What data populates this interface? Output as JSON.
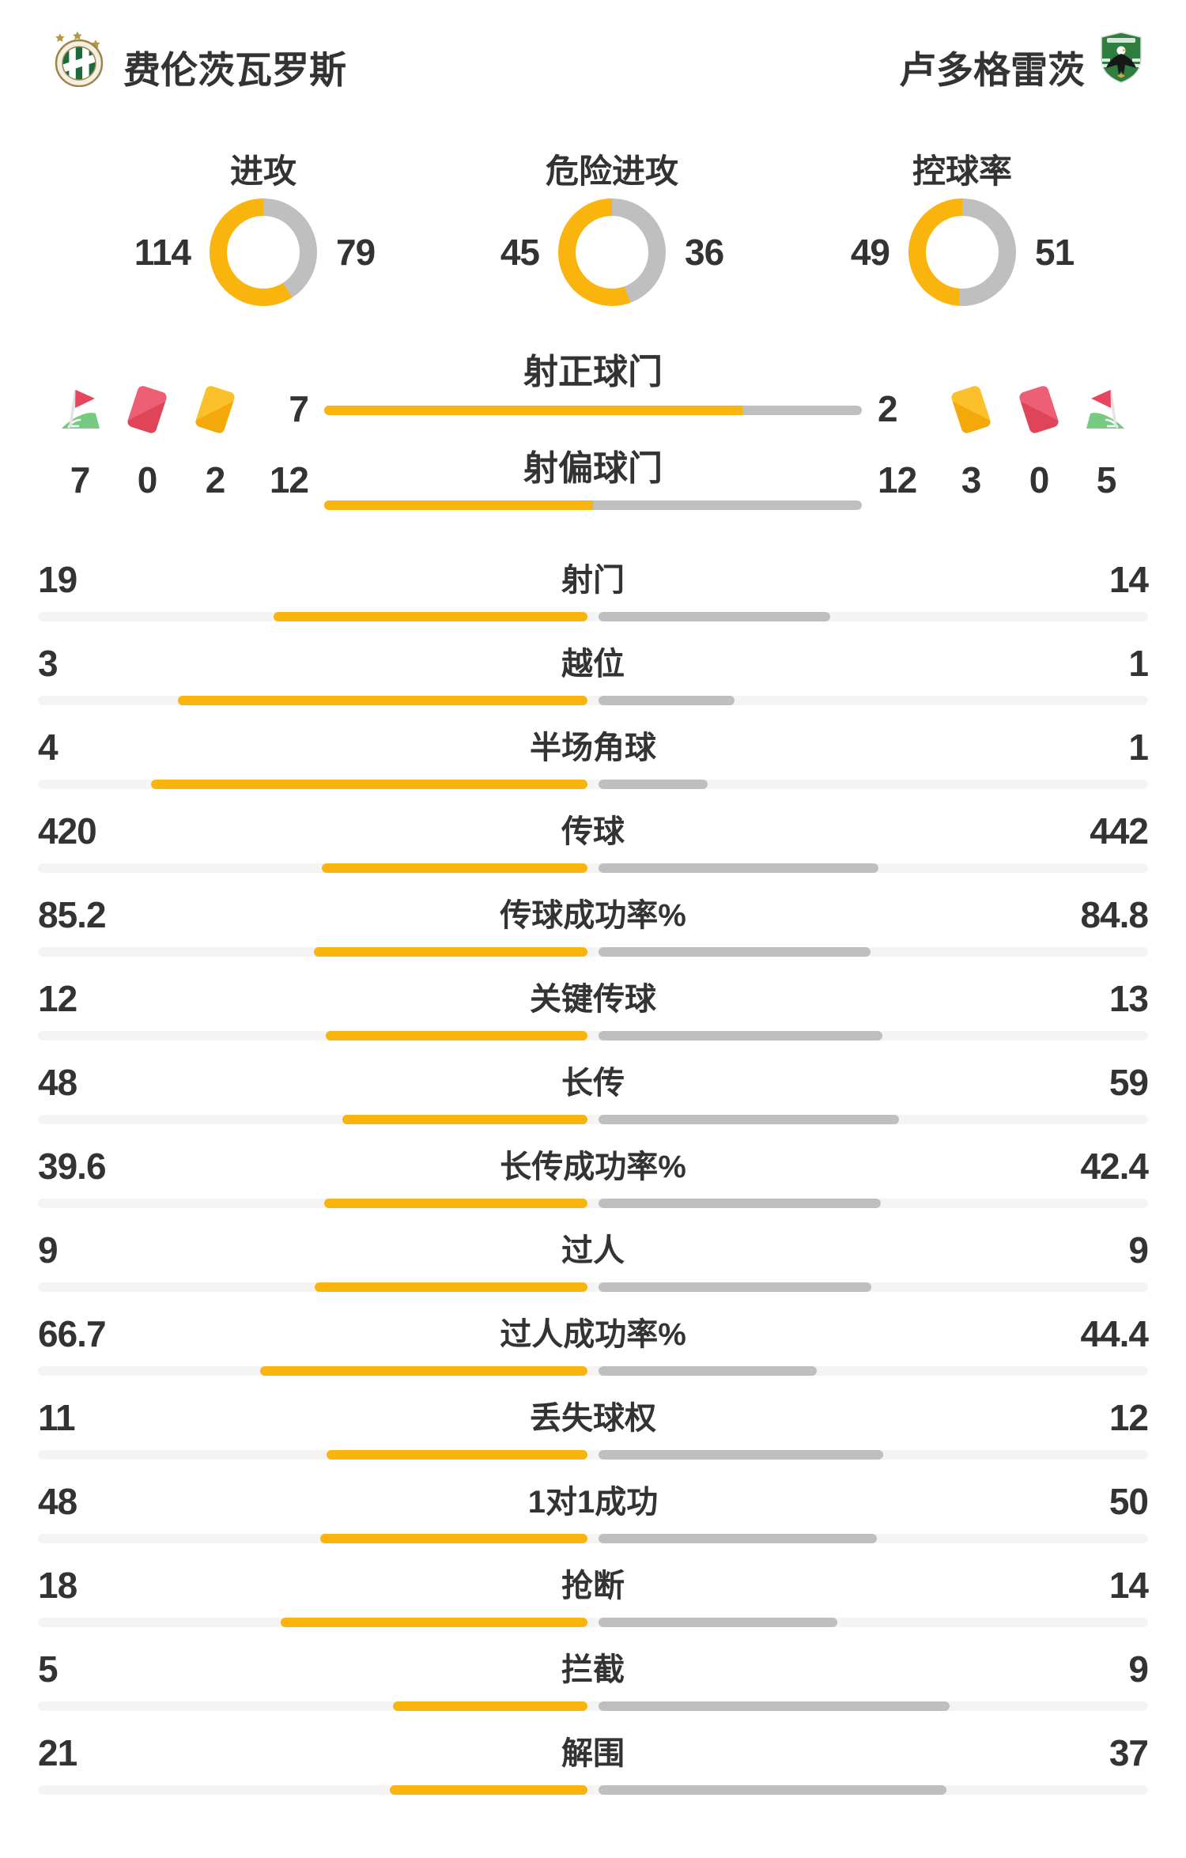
{
  "teams": {
    "home": {
      "name": "费伦茨瓦罗斯",
      "logo": "ferencvaros-badge"
    },
    "away": {
      "name": "卢多格雷茨",
      "logo": "ludogorets-badge"
    }
  },
  "donuts": [
    {
      "label": "进攻",
      "home": 114,
      "away": 79
    },
    {
      "label": "危险进攻",
      "home": 45,
      "away": 36
    },
    {
      "label": "控球率",
      "home": 49,
      "away": 51
    }
  ],
  "shot_bars": [
    {
      "label": "射正球门",
      "home": 7,
      "away": 2
    },
    {
      "label": "射偏球门",
      "home": 12,
      "away": 12
    }
  ],
  "discipline": {
    "home": [
      {
        "icon": "corner-flag-icon",
        "count": 7
      },
      {
        "icon": "red-card-icon",
        "count": 0
      },
      {
        "icon": "yellow-card-icon",
        "count": 2
      }
    ],
    "away": [
      {
        "icon": "yellow-card-icon",
        "count": 3
      },
      {
        "icon": "red-card-icon",
        "count": 0
      },
      {
        "icon": "corner-flag-icon",
        "count": 5
      }
    ]
  },
  "stats": [
    {
      "label": "射门",
      "home": 19,
      "away": 14
    },
    {
      "label": "越位",
      "home": 3,
      "away": 1
    },
    {
      "label": "半场角球",
      "home": 4,
      "away": 1
    },
    {
      "label": "传球",
      "home": 420,
      "away": 442
    },
    {
      "label": "传球成功率%",
      "home": 85.2,
      "away": 84.8
    },
    {
      "label": "关键传球",
      "home": 12,
      "away": 13
    },
    {
      "label": "长传",
      "home": 48,
      "away": 59
    },
    {
      "label": "长传成功率%",
      "home": 39.6,
      "away": 42.4
    },
    {
      "label": "过人",
      "home": 9,
      "away": 9
    },
    {
      "label": "过人成功率%",
      "home": 66.7,
      "away": 44.4
    },
    {
      "label": "丢失球权",
      "home": 11,
      "away": 12
    },
    {
      "label": "1对1成功",
      "home": 48,
      "away": 50
    },
    {
      "label": "抢断",
      "home": 18,
      "away": 14
    },
    {
      "label": "拦截",
      "home": 5,
      "away": 9
    },
    {
      "label": "解围",
      "home": 21,
      "away": 37
    }
  ],
  "colors": {
    "home_accent": "#F9B40E",
    "away_accent": "#BFBFBF",
    "track": "#F4F4F5",
    "text": "#333333",
    "red_card": "#E04458",
    "yellow_card": "#F4A90A",
    "flag_green": "#77CB80",
    "flag_red": "#E8465F"
  },
  "chart_data": [
    {
      "type": "pie",
      "title": "进攻",
      "categories": [
        "费伦茨瓦罗斯",
        "卢多格雷茨"
      ],
      "values": [
        114,
        79
      ],
      "colors": [
        "#F9B40E",
        "#BFBFBF"
      ]
    },
    {
      "type": "pie",
      "title": "危险进攻",
      "categories": [
        "费伦茨瓦罗斯",
        "卢多格雷茨"
      ],
      "values": [
        45,
        36
      ],
      "colors": [
        "#F9B40E",
        "#BFBFBF"
      ]
    },
    {
      "type": "pie",
      "title": "控球率",
      "categories": [
        "费伦茨瓦罗斯",
        "卢多格雷茨"
      ],
      "values": [
        49,
        51
      ],
      "colors": [
        "#F9B40E",
        "#BFBFBF"
      ]
    },
    {
      "type": "bar",
      "title": "比赛统计对比",
      "categories": [
        "射正球门",
        "射偏球门",
        "角球",
        "红牌",
        "黄牌",
        "射门",
        "越位",
        "半场角球",
        "传球",
        "传球成功率%",
        "关键传球",
        "长传",
        "长传成功率%",
        "过人",
        "过人成功率%",
        "丢失球权",
        "1对1成功",
        "抢断",
        "拦截",
        "解围"
      ],
      "series": [
        {
          "name": "费伦茨瓦罗斯",
          "values": [
            7,
            12,
            7,
            0,
            2,
            19,
            3,
            4,
            420,
            85.2,
            12,
            48,
            39.6,
            9,
            66.7,
            11,
            48,
            18,
            5,
            21
          ]
        },
        {
          "name": "卢多格雷茨",
          "values": [
            2,
            12,
            5,
            0,
            3,
            14,
            1,
            1,
            442,
            84.8,
            13,
            59,
            42.4,
            9,
            44.4,
            12,
            50,
            14,
            9,
            37
          ]
        }
      ],
      "legend_position": "top",
      "grid": false
    }
  ]
}
